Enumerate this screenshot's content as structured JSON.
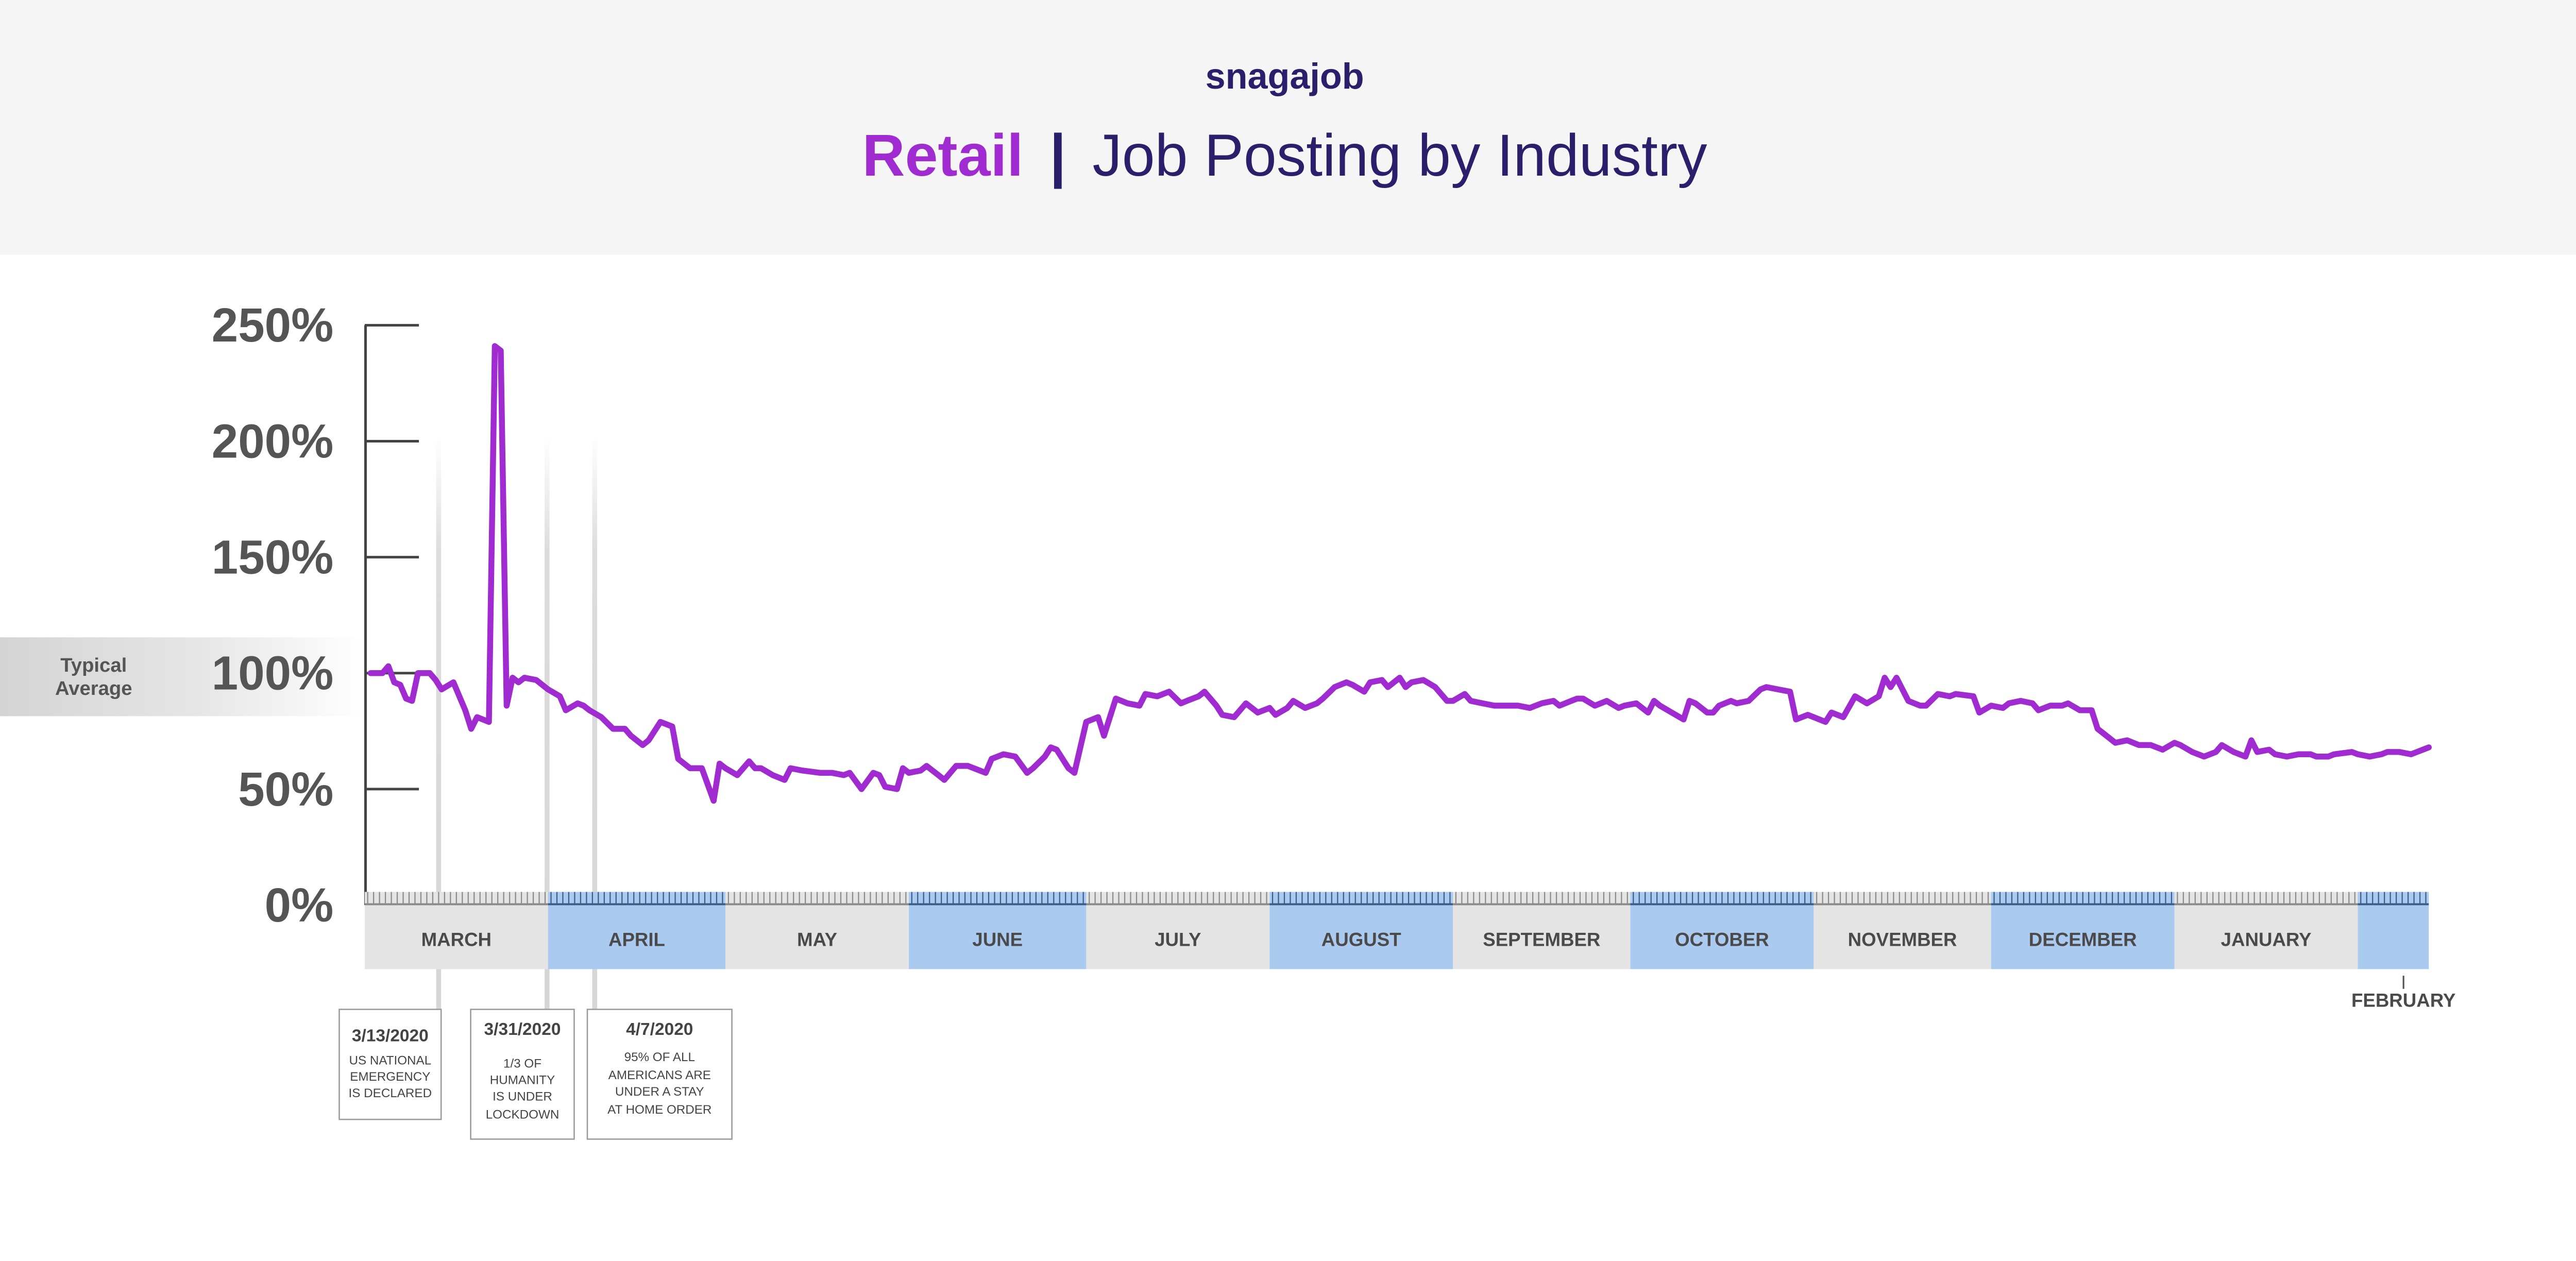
{
  "header": {
    "logo": "snagajob",
    "title_highlight": "Retail",
    "title_separator": "|",
    "title_rest": "Job Posting by Industry"
  },
  "typical_average": {
    "line1": "Typical",
    "line2": "Average"
  },
  "colors": {
    "line": "#a02bd1",
    "title_navy": "#2a1f6b",
    "band_gray": "#e4e4e4",
    "band_blue": "#aacaf0",
    "axis": "#444444"
  },
  "annotations": [
    {
      "date": "3/13/2020",
      "day": 12,
      "lines": [
        "US NATIONAL",
        "EMERGENCY",
        "IS DECLARED"
      ]
    },
    {
      "date": "3/31/2020",
      "day": 30,
      "lines": [
        "1/3 OF",
        "HUMANITY",
        "IS UNDER",
        "LOCKDOWN"
      ]
    },
    {
      "date": "4/7/2020",
      "day": 37,
      "lines": [
        "95% OF ALL",
        "AMERICANS ARE",
        "UNDER A STAY",
        "AT HOME ORDER"
      ]
    }
  ],
  "chart_data": {
    "type": "line",
    "title": "Retail | Job Posting by Industry",
    "xlabel": "",
    "ylabel": "",
    "x_unit": "days since March 1, 2020",
    "ylim": [
      0,
      250
    ],
    "yticks": [
      0,
      50,
      100,
      150,
      200,
      250
    ],
    "ytick_labels": [
      "0%",
      "50%",
      "100%",
      "150%",
      "200%",
      "250%"
    ],
    "months": [
      {
        "label": "MARCH",
        "start": 0,
        "end": 31,
        "shade": "gray"
      },
      {
        "label": "APRIL",
        "start": 31,
        "end": 61,
        "shade": "blue"
      },
      {
        "label": "MAY",
        "start": 61,
        "end": 92,
        "shade": "gray"
      },
      {
        "label": "JUNE",
        "start": 92,
        "end": 122,
        "shade": "blue"
      },
      {
        "label": "JULY",
        "start": 122,
        "end": 153,
        "shade": "gray"
      },
      {
        "label": "AUGUST",
        "start": 153,
        "end": 184,
        "shade": "blue"
      },
      {
        "label": "SEPTEMBER",
        "start": 184,
        "end": 214,
        "shade": "gray"
      },
      {
        "label": "OCTOBER",
        "start": 214,
        "end": 245,
        "shade": "blue"
      },
      {
        "label": "NOVEMBER",
        "start": 245,
        "end": 275,
        "shade": "gray"
      },
      {
        "label": "DECEMBER",
        "start": 275,
        "end": 306,
        "shade": "blue"
      },
      {
        "label": "JANUARY",
        "start": 306,
        "end": 337,
        "shade": "gray"
      },
      {
        "label": "FEBRUARY",
        "start": 337,
        "end": 349,
        "shade": "blue"
      }
    ],
    "reference_band": {
      "label": "Typical Average",
      "value": 100
    },
    "series": [
      {
        "name": "Retail",
        "points": [
          [
            1,
            100
          ],
          [
            3,
            100
          ],
          [
            4,
            103
          ],
          [
            5,
            96
          ],
          [
            6,
            95
          ],
          [
            7,
            89
          ],
          [
            8,
            88
          ],
          [
            9,
            100
          ],
          [
            11,
            100
          ],
          [
            12,
            97
          ],
          [
            13,
            93
          ],
          [
            15,
            96
          ],
          [
            17,
            84
          ],
          [
            18,
            76
          ],
          [
            19,
            81
          ],
          [
            21,
            79
          ],
          [
            22,
            241
          ],
          [
            23,
            239
          ],
          [
            24,
            86
          ],
          [
            25,
            98
          ],
          [
            26,
            96
          ],
          [
            27,
            98
          ],
          [
            29,
            97
          ],
          [
            31,
            93
          ],
          [
            33,
            90
          ],
          [
            34,
            84
          ],
          [
            36,
            87
          ],
          [
            37,
            86
          ],
          [
            38,
            84
          ],
          [
            40,
            81
          ],
          [
            42,
            76
          ],
          [
            44,
            76
          ],
          [
            45,
            73
          ],
          [
            47,
            69
          ],
          [
            48,
            71
          ],
          [
            50,
            79
          ],
          [
            52,
            77
          ],
          [
            53,
            63
          ],
          [
            55,
            59
          ],
          [
            57,
            59
          ],
          [
            59,
            45
          ],
          [
            60,
            61
          ],
          [
            61,
            59
          ],
          [
            63,
            56
          ],
          [
            65,
            62
          ],
          [
            66,
            59
          ],
          [
            67,
            59
          ],
          [
            69,
            56
          ],
          [
            71,
            54
          ],
          [
            72,
            59
          ],
          [
            74,
            58
          ],
          [
            77,
            57
          ],
          [
            79,
            57
          ],
          [
            81,
            56
          ],
          [
            82,
            57
          ],
          [
            84,
            50
          ],
          [
            86,
            57
          ],
          [
            87,
            56
          ],
          [
            88,
            51
          ],
          [
            90,
            50
          ],
          [
            91,
            59
          ],
          [
            92,
            57
          ],
          [
            94,
            58
          ],
          [
            95,
            60
          ],
          [
            97,
            56
          ],
          [
            98,
            54
          ],
          [
            100,
            60
          ],
          [
            102,
            60
          ],
          [
            104,
            58
          ],
          [
            105,
            57
          ],
          [
            106,
            63
          ],
          [
            108,
            65
          ],
          [
            110,
            64
          ],
          [
            112,
            57
          ],
          [
            113,
            59
          ],
          [
            115,
            64
          ],
          [
            116,
            68
          ],
          [
            117,
            67
          ],
          [
            119,
            59
          ],
          [
            120,
            57
          ],
          [
            122,
            79
          ],
          [
            124,
            81
          ],
          [
            125,
            73
          ],
          [
            127,
            89
          ],
          [
            129,
            87
          ],
          [
            131,
            86
          ],
          [
            132,
            91
          ],
          [
            134,
            90
          ],
          [
            136,
            92
          ],
          [
            138,
            87
          ],
          [
            139,
            88
          ],
          [
            141,
            90
          ],
          [
            142,
            92
          ],
          [
            144,
            86
          ],
          [
            145,
            82
          ],
          [
            147,
            81
          ],
          [
            149,
            87
          ],
          [
            151,
            83
          ],
          [
            152,
            84
          ],
          [
            153,
            85
          ],
          [
            154,
            82
          ],
          [
            156,
            85
          ],
          [
            157,
            88
          ],
          [
            159,
            85
          ],
          [
            161,
            87
          ],
          [
            162,
            89
          ],
          [
            164,
            94
          ],
          [
            166,
            96
          ],
          [
            167,
            95
          ],
          [
            169,
            92
          ],
          [
            170,
            96
          ],
          [
            172,
            97
          ],
          [
            173,
            94
          ],
          [
            175,
            98
          ],
          [
            176,
            94
          ],
          [
            177,
            96
          ],
          [
            179,
            97
          ],
          [
            181,
            94
          ],
          [
            183,
            88
          ],
          [
            184,
            88
          ],
          [
            186,
            91
          ],
          [
            187,
            88
          ],
          [
            189,
            87
          ],
          [
            191,
            86
          ],
          [
            192,
            86
          ],
          [
            194,
            86
          ],
          [
            195,
            86
          ],
          [
            197,
            85
          ],
          [
            198,
            86
          ],
          [
            199,
            87
          ],
          [
            201,
            88
          ],
          [
            202,
            86
          ],
          [
            204,
            88
          ],
          [
            205,
            89
          ],
          [
            206,
            89
          ],
          [
            208,
            86
          ],
          [
            210,
            88
          ],
          [
            212,
            85
          ],
          [
            213,
            86
          ],
          [
            215,
            87
          ],
          [
            217,
            83
          ],
          [
            218,
            88
          ],
          [
            219,
            86
          ],
          [
            221,
            83
          ],
          [
            223,
            80
          ],
          [
            224,
            88
          ],
          [
            225,
            87
          ],
          [
            227,
            83
          ],
          [
            228,
            83
          ],
          [
            229,
            86
          ],
          [
            231,
            88
          ],
          [
            232,
            87
          ],
          [
            234,
            88
          ],
          [
            236,
            93
          ],
          [
            237,
            94
          ],
          [
            239,
            93
          ],
          [
            241,
            92
          ],
          [
            242,
            80
          ],
          [
            244,
            82
          ],
          [
            245,
            81
          ],
          [
            247,
            79
          ],
          [
            248,
            83
          ],
          [
            250,
            81
          ],
          [
            252,
            90
          ],
          [
            254,
            87
          ],
          [
            256,
            90
          ],
          [
            257,
            98
          ],
          [
            258,
            94
          ],
          [
            259,
            98
          ],
          [
            261,
            88
          ],
          [
            263,
            86
          ],
          [
            264,
            86
          ],
          [
            266,
            91
          ],
          [
            268,
            90
          ],
          [
            269,
            91
          ],
          [
            272,
            90
          ],
          [
            273,
            83
          ],
          [
            275,
            86
          ],
          [
            277,
            85
          ],
          [
            278,
            87
          ],
          [
            280,
            88
          ],
          [
            282,
            87
          ],
          [
            283,
            84
          ],
          [
            285,
            86
          ],
          [
            287,
            86
          ],
          [
            288,
            87
          ],
          [
            290,
            84
          ],
          [
            292,
            84
          ],
          [
            293,
            76
          ],
          [
            294,
            74
          ],
          [
            296,
            70
          ],
          [
            298,
            71
          ],
          [
            300,
            69
          ],
          [
            302,
            69
          ],
          [
            304,
            67
          ],
          [
            306,
            70
          ],
          [
            307,
            69
          ],
          [
            309,
            66
          ],
          [
            311,
            64
          ],
          [
            313,
            66
          ],
          [
            314,
            69
          ],
          [
            316,
            66
          ],
          [
            318,
            64
          ],
          [
            319,
            71
          ],
          [
            320,
            66
          ],
          [
            322,
            67
          ],
          [
            323,
            65
          ],
          [
            325,
            64
          ],
          [
            327,
            65
          ],
          [
            329,
            65
          ],
          [
            330,
            64
          ],
          [
            332,
            64
          ],
          [
            333,
            65
          ],
          [
            336,
            66
          ],
          [
            337,
            65
          ],
          [
            339,
            64
          ],
          [
            341,
            65
          ],
          [
            342,
            66
          ],
          [
            344,
            66
          ],
          [
            346,
            65
          ],
          [
            347,
            66
          ],
          [
            349,
            68
          ]
        ]
      }
    ]
  }
}
